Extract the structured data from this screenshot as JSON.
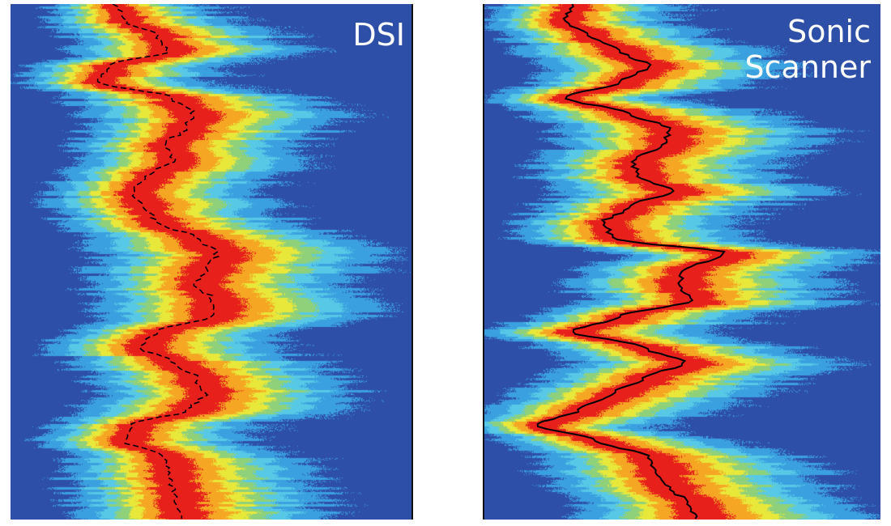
{
  "chart_data": [
    {
      "type": "heatmap",
      "title": "DSI",
      "trace_style": "dashed",
      "x_profile": [
        130,
        140,
        180,
        195,
        120,
        110,
        200,
        225,
        215,
        190,
        200,
        170,
        150,
        165,
        180,
        230,
        255,
        240,
        230,
        250,
        250,
        180,
        160,
        200,
        230,
        240,
        220,
        150,
        140,
        190,
        195,
        200,
        205,
        210
      ],
      "band_width": [
        60,
        70,
        85,
        90,
        75,
        70,
        95,
        100,
        95,
        85,
        90,
        80,
        80,
        85,
        90,
        105,
        110,
        105,
        100,
        105,
        100,
        85,
        85,
        95,
        100,
        100,
        95,
        80,
        80,
        90,
        95,
        95,
        95,
        95
      ],
      "depth_range": [
        0,
        1
      ]
    },
    {
      "type": "heatmap",
      "title": "Sonic Scanner",
      "trace_style": "solid",
      "x_profile": [
        110,
        100,
        130,
        170,
        205,
        170,
        100,
        180,
        230,
        225,
        185,
        190,
        235,
        180,
        150,
        160,
        300,
        250,
        240,
        260,
        170,
        110,
        200,
        250,
        200,
        160,
        120,
        70,
        140,
        205,
        215,
        230,
        255,
        265
      ],
      "band_width": [
        70,
        75,
        80,
        90,
        90,
        85,
        75,
        95,
        100,
        100,
        90,
        95,
        100,
        90,
        85,
        85,
        105,
        100,
        100,
        100,
        90,
        80,
        95,
        100,
        95,
        90,
        85,
        75,
        90,
        100,
        105,
        105,
        105,
        105
      ],
      "depth_range": [
        0,
        1
      ]
    }
  ],
  "colors": {
    "background": "#2e4fa8",
    "ramp": [
      "#2e4fa8",
      "#3aa0e0",
      "#57c9e6",
      "#8fd17a",
      "#e8e83a",
      "#f5a623",
      "#e8201c"
    ],
    "trace": "#000000",
    "title": "#ffffff"
  }
}
